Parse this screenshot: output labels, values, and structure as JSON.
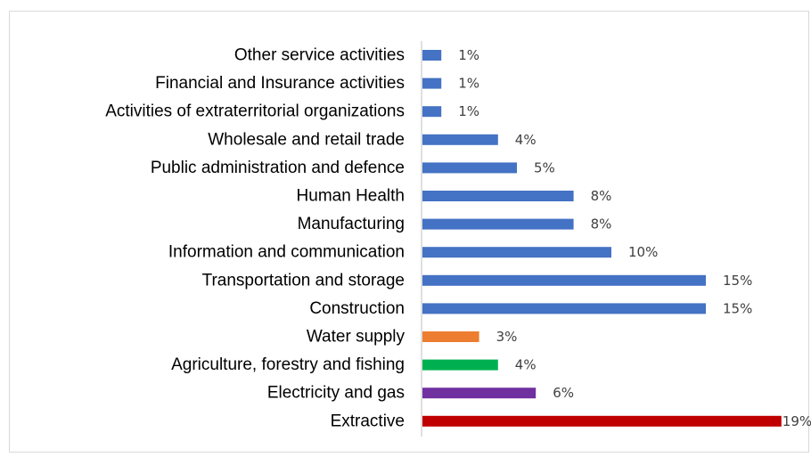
{
  "chart_data": {
    "type": "bar",
    "orientation": "horizontal",
    "title": "",
    "xlabel": "",
    "ylabel": "",
    "xlim": [
      0,
      19
    ],
    "grid": false,
    "legend": "none",
    "categories": [
      "Other service activities",
      "Financial and Insurance activities",
      "Activities of extraterritorial organizations",
      "Wholesale and retail trade",
      "Public administration and defence",
      "Human Health",
      "Manufacturing",
      "Information and communication",
      "Transportation and storage",
      "Construction",
      "Water supply",
      "Agriculture, forestry and fishing",
      "Electricity and gas",
      "Extractive"
    ],
    "values": [
      1,
      1,
      1,
      4,
      5,
      8,
      8,
      10,
      15,
      15,
      3,
      4,
      6,
      19
    ],
    "value_labels": [
      "1%",
      "1%",
      "1%",
      "4%",
      "5%",
      "8%",
      "8%",
      "10%",
      "15%",
      "15%",
      "3%",
      "4%",
      "6%",
      "19%"
    ],
    "colors": [
      "#4472C4",
      "#4472C4",
      "#4472C4",
      "#4472C4",
      "#4472C4",
      "#4472C4",
      "#4472C4",
      "#4472C4",
      "#4472C4",
      "#4472C4",
      "#ED7D31",
      "#00B050",
      "#7030A0",
      "#C00000"
    ]
  }
}
